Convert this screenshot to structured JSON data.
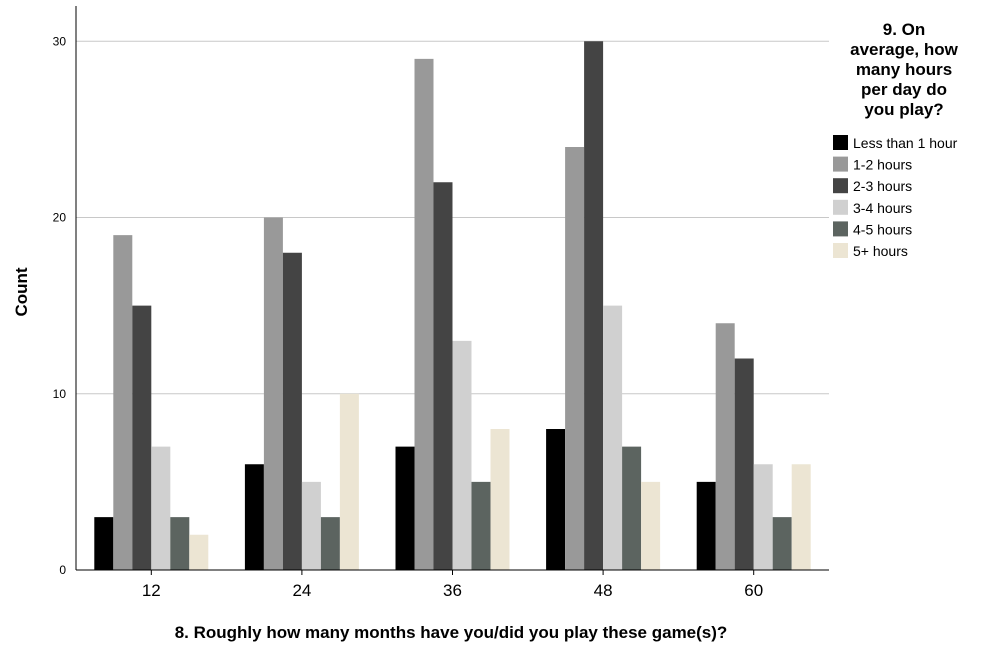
{
  "chart_data": {
    "type": "bar",
    "categories": [
      "12",
      "24",
      "36",
      "48",
      "60"
    ],
    "series": [
      {
        "name": "Less than 1 hour",
        "values": [
          3,
          6,
          7,
          8,
          5
        ],
        "color": "#000000"
      },
      {
        "name": "1-2 hours",
        "values": [
          19,
          20,
          29,
          24,
          14
        ],
        "color": "#999999"
      },
      {
        "name": "2-3 hours",
        "values": [
          15,
          18,
          22,
          30,
          12
        ],
        "color": "#444444"
      },
      {
        "name": "3-4 hours",
        "values": [
          7,
          5,
          13,
          15,
          6
        ],
        "color": "#d0d0d0"
      },
      {
        "name": "4-5 hours",
        "values": [
          3,
          3,
          5,
          7,
          3
        ],
        "color": "#5c6460"
      },
      {
        "name": "5+ hours",
        "values": [
          2,
          10,
          8,
          5,
          6
        ],
        "color": "#ece5d3"
      }
    ],
    "xlabel": "8. Roughly how many months have you/did you play these game(s)?",
    "ylabel": "Count",
    "ylim": [
      0,
      32
    ],
    "yticks": [
      0,
      10,
      20,
      30
    ],
    "grid": true,
    "legend": {
      "title_lines": [
        "9. On",
        "average, how",
        "many hours",
        "per day do",
        "you play?"
      ],
      "placement": "right"
    }
  }
}
